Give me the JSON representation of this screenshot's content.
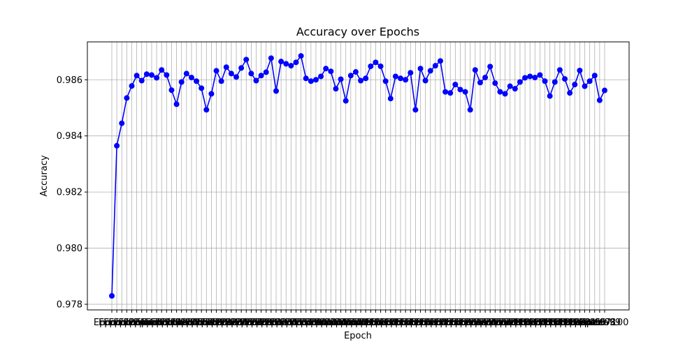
{
  "chart_data": {
    "type": "line",
    "title": "Accuracy over Epochs",
    "xlabel": "Epoch",
    "ylabel": "Accuracy",
    "ylim": [
      0.9778,
      0.98735
    ],
    "yticks": [
      0.978,
      0.98,
      0.982,
      0.984,
      0.986
    ],
    "ytick_labels": [
      "0.978",
      "0.980",
      "0.982",
      "0.984",
      "0.986"
    ],
    "grid": true,
    "legend": "none",
    "x_prefix": "Epoch ",
    "series": [
      {
        "color": "#0000ff",
        "marker": "circle",
        "x": [
          1,
          2,
          3,
          4,
          5,
          6,
          7,
          8,
          9,
          10,
          11,
          12,
          13,
          14,
          15,
          16,
          17,
          18,
          19,
          20,
          21,
          22,
          23,
          24,
          25,
          26,
          27,
          28,
          29,
          30,
          31,
          32,
          33,
          34,
          35,
          36,
          37,
          38,
          39,
          40,
          41,
          42,
          43,
          44,
          45,
          46,
          47,
          48,
          49,
          50,
          51,
          52,
          53,
          54,
          55,
          56,
          57,
          58,
          59,
          60,
          61,
          62,
          63,
          64,
          65,
          66,
          67,
          68,
          69,
          70,
          71,
          72,
          73,
          74,
          75,
          76,
          77,
          78,
          79,
          80,
          81,
          82,
          83,
          84,
          85,
          86,
          87,
          88,
          89,
          90,
          91,
          92,
          93,
          94,
          95,
          96,
          97,
          98,
          99,
          100
        ],
        "values": [
          0.9783,
          0.98365,
          0.98445,
          0.98535,
          0.98578,
          0.98615,
          0.98597,
          0.9862,
          0.98617,
          0.98607,
          0.98635,
          0.98617,
          0.98563,
          0.98513,
          0.98592,
          0.98622,
          0.98608,
          0.98595,
          0.9857,
          0.98493,
          0.9855,
          0.98632,
          0.98595,
          0.98645,
          0.98622,
          0.9861,
          0.98642,
          0.98672,
          0.98622,
          0.98597,
          0.98615,
          0.98627,
          0.98677,
          0.9856,
          0.98665,
          0.98657,
          0.9865,
          0.98662,
          0.98685,
          0.98605,
          0.98595,
          0.986,
          0.98612,
          0.9864,
          0.9863,
          0.98568,
          0.98602,
          0.98525,
          0.98615,
          0.98628,
          0.98597,
          0.98605,
          0.98648,
          0.98662,
          0.98648,
          0.98595,
          0.98533,
          0.98612,
          0.98605,
          0.986,
          0.98625,
          0.98493,
          0.9864,
          0.98597,
          0.98632,
          0.9865,
          0.98667,
          0.98557,
          0.98553,
          0.98583,
          0.98565,
          0.98557,
          0.98493,
          0.98635,
          0.9859,
          0.98608,
          0.98647,
          0.98588,
          0.98557,
          0.9855,
          0.98577,
          0.98568,
          0.98592,
          0.98607,
          0.98612,
          0.98608,
          0.98617,
          0.98595,
          0.98542,
          0.98592,
          0.98635,
          0.98603,
          0.98553,
          0.98583,
          0.98633,
          0.98577,
          0.98595,
          0.98615,
          0.98527,
          0.98562
        ]
      }
    ]
  }
}
